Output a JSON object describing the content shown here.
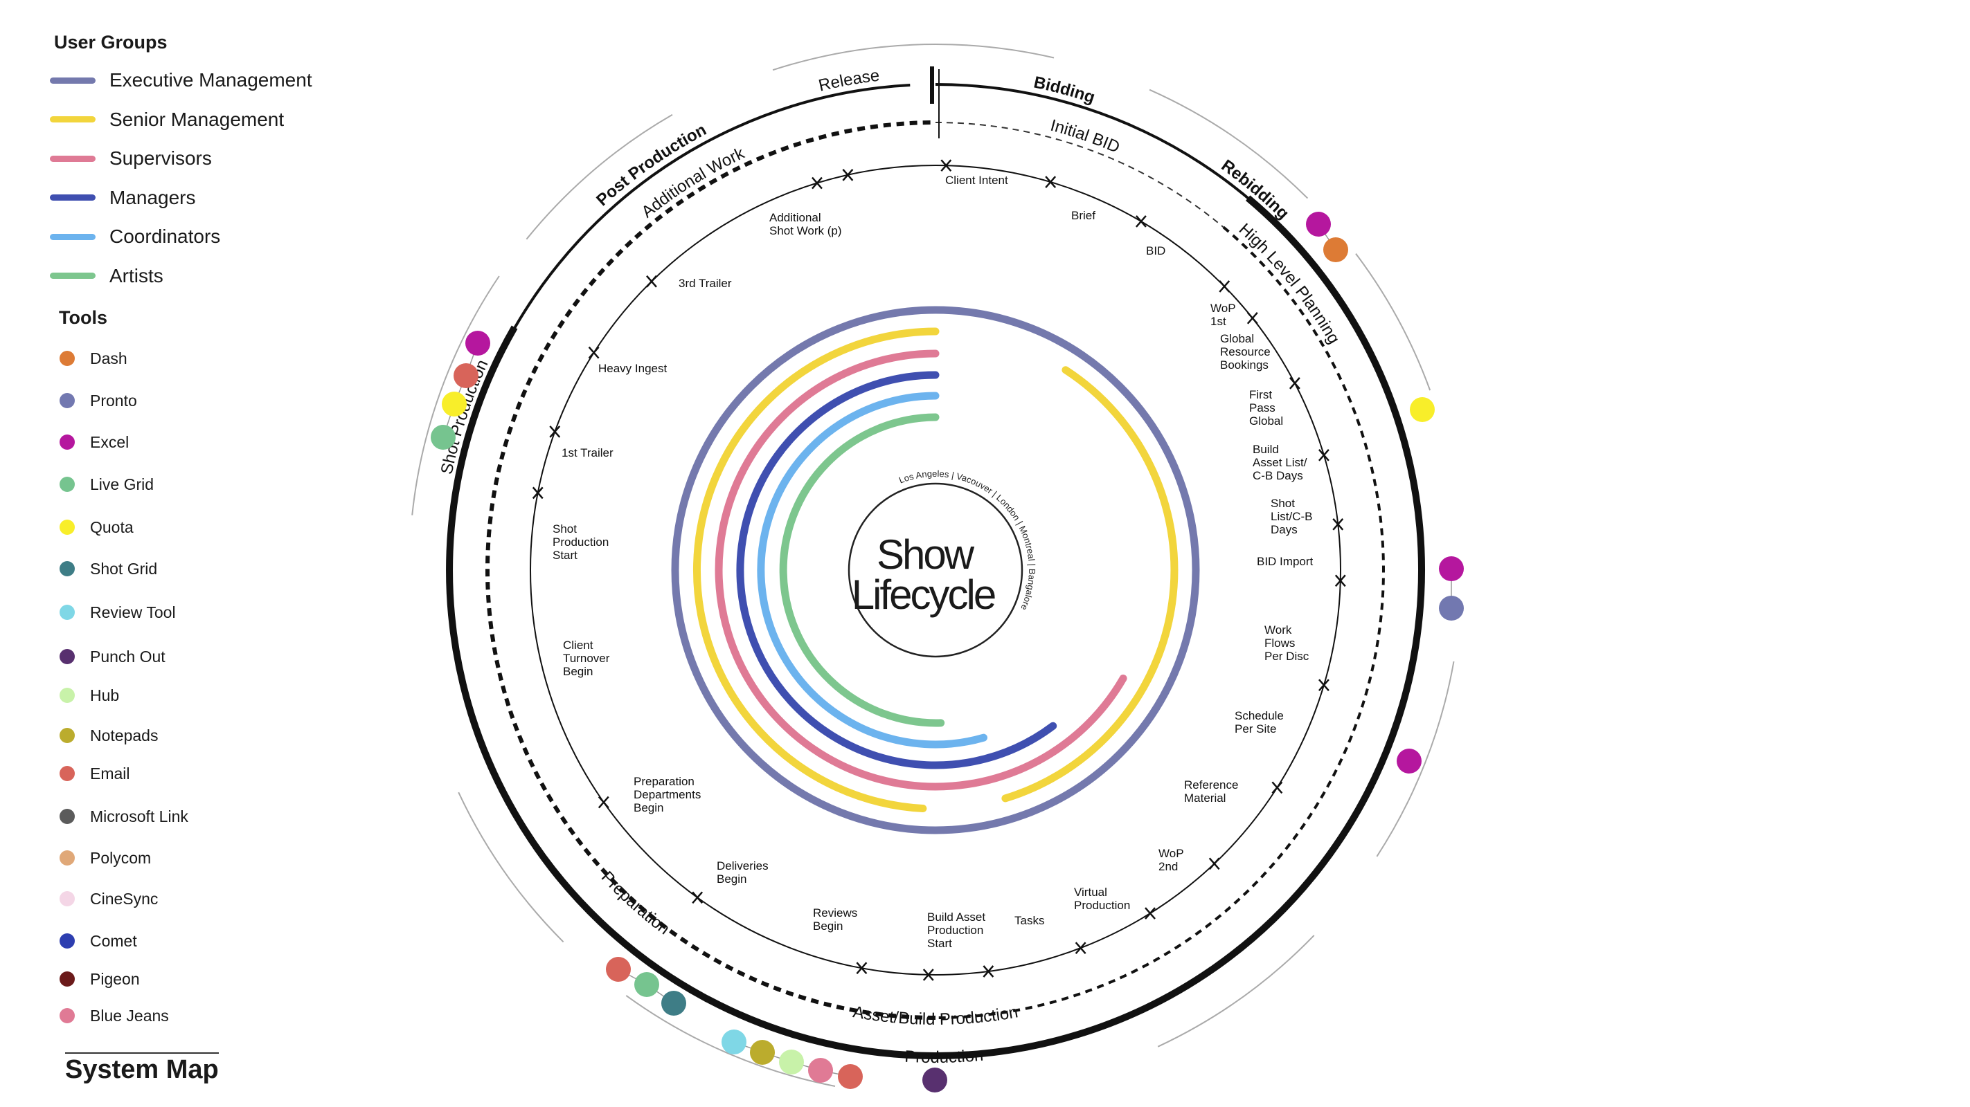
{
  "legend": {
    "user_groups_title": "User Groups",
    "user_groups": [
      {
        "label": "Executive Management",
        "color": "#7479ad"
      },
      {
        "label": "Senior Management",
        "color": "#f2d53c"
      },
      {
        "label": "Supervisors",
        "color": "#df7a95"
      },
      {
        "label": "Managers",
        "color": "#3f4fb0"
      },
      {
        "label": "Coordinators",
        "color": "#6cb3ee"
      },
      {
        "label": "Artists",
        "color": "#7dc68e"
      }
    ],
    "tools_title": "Tools",
    "tools": [
      {
        "label": "Dash",
        "color": "#dd7b35"
      },
      {
        "label": "Pronto",
        "color": "#7278b0"
      },
      {
        "label": "Excel",
        "color": "#b5179e"
      },
      {
        "label": "Live Grid",
        "color": "#76c48f"
      },
      {
        "label": "Quota",
        "color": "#f8ee2a"
      },
      {
        "label": "Shot Grid",
        "color": "#3e7d86"
      },
      {
        "label": "Review Tool",
        "color": "#7fd7e6"
      },
      {
        "label": "Punch Out",
        "color": "#58306f"
      },
      {
        "label": "Hub",
        "color": "#c8f2a9"
      },
      {
        "label": "Notepads",
        "color": "#bbac2d"
      },
      {
        "label": "Email",
        "color": "#d8645a"
      },
      {
        "label": "Microsoft Link",
        "color": "#5b5b5b"
      },
      {
        "label": "Polycom",
        "color": "#e0a878"
      },
      {
        "label": "CineSync",
        "color": "#f4d6e6"
      },
      {
        "label": "Comet",
        "color": "#2d3eb0"
      },
      {
        "label": "Pigeon",
        "color": "#6b1a1a"
      },
      {
        "label": "Blue Jeans",
        "color": "#e07a95"
      }
    ],
    "system_map_title": "System Map"
  },
  "center": {
    "title_line1": "Show",
    "title_line2": "Lifecycle",
    "locations": "Los Angeles | Vacouver | London | Montreal | Bangalore"
  },
  "phases": {
    "release": "Release",
    "bidding": "Bidding",
    "initial_bid": "Initial BID",
    "rebidding": "Rebidding",
    "high_level_planning": "High Level Planning",
    "post_production": "Post Production",
    "additional_work": "Additional Work",
    "shot_production": "Shot Production",
    "preparation": "Preparation",
    "asset_build_production": "Asset/Build Production",
    "production": "Production"
  },
  "milestones": [
    {
      "label": "Client Intent"
    },
    {
      "label": "Brief"
    },
    {
      "label": "BID"
    },
    {
      "label": "WoP\n1st"
    },
    {
      "label": "Global\nResource\nBookings"
    },
    {
      "label": "First\nPass\nGlobal"
    },
    {
      "label": "Build\nAsset List/\nC-B Days"
    },
    {
      "label": "Shot\nList/C-B\nDays"
    },
    {
      "label": "BID Import"
    },
    {
      "label": "Work\nFlows\nPer Disc"
    },
    {
      "label": "Schedule\nPer Site"
    },
    {
      "label": "Reference\nMaterial"
    },
    {
      "label": "WoP\n2nd"
    },
    {
      "label": "Virtual\nProduction"
    },
    {
      "label": "Tasks"
    },
    {
      "label": "Build Asset\nProduction\nStart"
    },
    {
      "label": "Reviews\nBegin"
    },
    {
      "label": "Deliveries\nBegin"
    },
    {
      "label": "Preparation\nDepartments\nBegin"
    },
    {
      "label": "Client\nTurnover\nBegin"
    },
    {
      "label": "Shot\nProduction\nStart"
    },
    {
      "label": "1st Trailer"
    },
    {
      "label": "Heavy Ingest"
    },
    {
      "label": "3rd Trailer"
    },
    {
      "label": "Additional\nShot Work (p)"
    }
  ],
  "tool_clusters": [
    {
      "tools": [
        "Excel",
        "Dash"
      ]
    },
    {
      "tools": [
        "Quota"
      ]
    },
    {
      "tools": [
        "Excel",
        "Pronto"
      ]
    },
    {
      "tools": [
        "Excel"
      ]
    },
    {
      "tools": [
        "Punch Out"
      ]
    },
    {
      "tools": [
        "Review Tool",
        "Notepads",
        "Hub",
        "Blue Jeans",
        "Email"
      ]
    },
    {
      "tools": [
        "Email",
        "Live Grid",
        "Shot Grid"
      ]
    },
    {
      "tools": [
        "Excel",
        "Email",
        "Quota",
        "Live Grid"
      ]
    }
  ]
}
